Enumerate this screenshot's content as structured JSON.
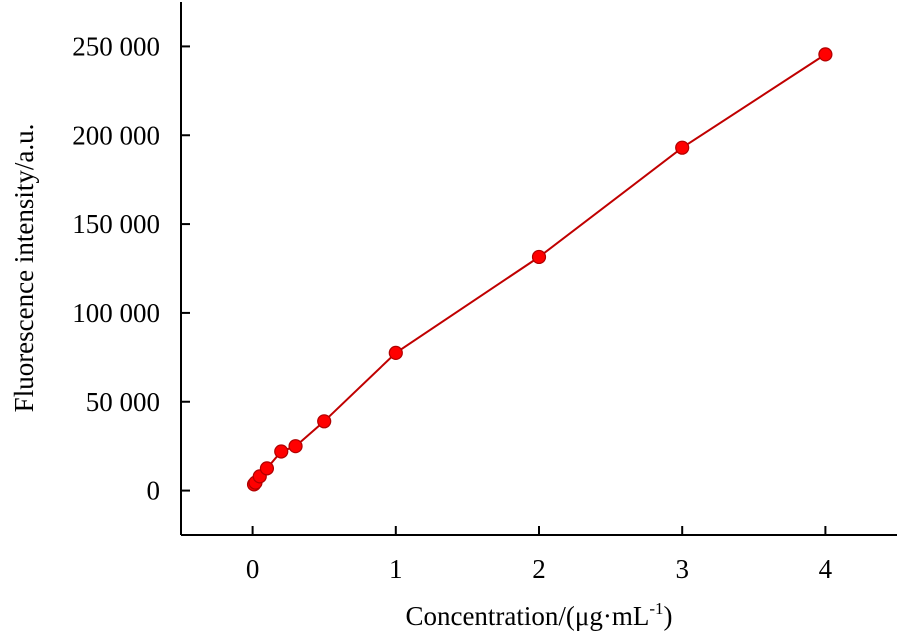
{
  "chart_data": {
    "type": "line",
    "title": "",
    "xlabel": "Concentration/(μg·mL",
    "xlabel_superscript": "-1",
    "xlabel_suffix": ")",
    "ylabel": "Fluorescence intensity/a.u.",
    "xlim": [
      -0.5,
      4.5
    ],
    "ylim": [
      -25000,
      275000
    ],
    "x_ticks": [
      0,
      1,
      2,
      3,
      4
    ],
    "x_tick_labels": [
      "0",
      "1",
      "2",
      "3",
      "4"
    ],
    "y_ticks": [
      0,
      50000,
      100000,
      150000,
      200000,
      250000
    ],
    "y_tick_labels": [
      "0",
      "50 000",
      "100 000",
      "150 000",
      "200 000",
      "250 000"
    ],
    "grid": false,
    "series": [
      {
        "x": [
          0.01,
          0.02,
          0.05,
          0.1,
          0.2,
          0.3,
          0.5,
          1,
          2,
          3,
          4
        ],
        "y": [
          3500,
          4500,
          8000,
          12500,
          22000,
          25000,
          39000,
          77500,
          131500,
          193000,
          245500
        ],
        "color": "#ff0000",
        "line_color": "#c00000",
        "marker": "circle"
      }
    ]
  }
}
